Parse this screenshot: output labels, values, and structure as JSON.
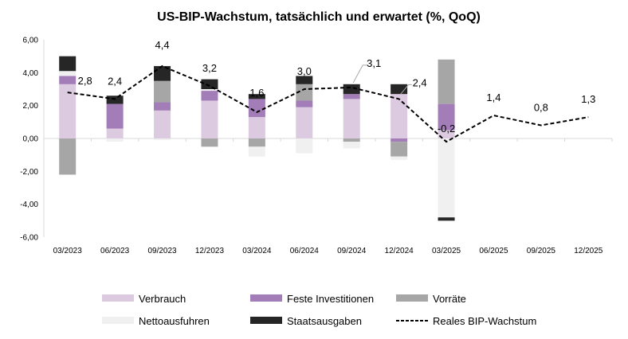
{
  "chart_data": {
    "type": "bar",
    "title": "US-BIP-Wachstum, tatsächlich und erwartet (%, QoQ)",
    "xlabel": "",
    "ylabel": "",
    "categories": [
      "03/2023",
      "06/2023",
      "09/2023",
      "12/2023",
      "03/2024",
      "06/2024",
      "09/2024",
      "12/2024",
      "03/2025",
      "06/2025",
      "09/2025",
      "12/2025"
    ],
    "y_tick_labels": [
      "6,00",
      "4,00",
      "2,00",
      "0,00",
      "-2,00",
      "-4,00",
      "-6,00"
    ],
    "y_ticks": [
      6,
      4,
      2,
      0,
      -2,
      -4,
      -6
    ],
    "ylim": [
      -6,
      6
    ],
    "grid": false,
    "legend_position": "bottom",
    "series": [
      {
        "name": "Verbrauch",
        "color": "#dccbe0",
        "values": [
          3.3,
          0.6,
          1.7,
          2.3,
          1.3,
          1.9,
          2.4,
          2.7,
          0.5,
          null,
          null,
          null
        ]
      },
      {
        "name": "Feste Investitionen",
        "color": "#a37db8",
        "values": [
          0.5,
          1.5,
          0.5,
          0.6,
          1.1,
          0.4,
          0.3,
          -0.2,
          1.6,
          null,
          null,
          null
        ]
      },
      {
        "name": "Vorräte",
        "color": "#a6a6a6",
        "values": [
          -2.2,
          0.0,
          1.3,
          -0.5,
          -0.5,
          1.0,
          -0.2,
          -0.9,
          2.7,
          null,
          null,
          null
        ]
      },
      {
        "name": "Nettoausfuhren",
        "color": "#f0f0f0",
        "values": [
          0.3,
          -0.2,
          -0.1,
          0.1,
          -0.6,
          -0.9,
          -0.4,
          -0.2,
          -4.8,
          null,
          null,
          null
        ]
      },
      {
        "name": "Staatsausgaben",
        "color": "#262626",
        "values": [
          0.9,
          0.5,
          0.9,
          0.6,
          0.3,
          0.5,
          0.6,
          0.6,
          -0.2,
          null,
          null,
          null
        ]
      }
    ],
    "line": {
      "name": "Reales BIP-Wachstum",
      "color": "#000000",
      "style": "dashed",
      "values": [
        2.8,
        2.4,
        4.4,
        3.2,
        1.6,
        3.0,
        3.1,
        2.4,
        -0.2,
        1.4,
        0.8,
        1.3
      ],
      "labels": [
        "2,8",
        "2,4",
        "4,4",
        "3,2",
        "1,6",
        "3,0",
        "3,1",
        "2,4",
        "-0,2",
        "1,4",
        "0,8",
        "1,3"
      ]
    }
  }
}
